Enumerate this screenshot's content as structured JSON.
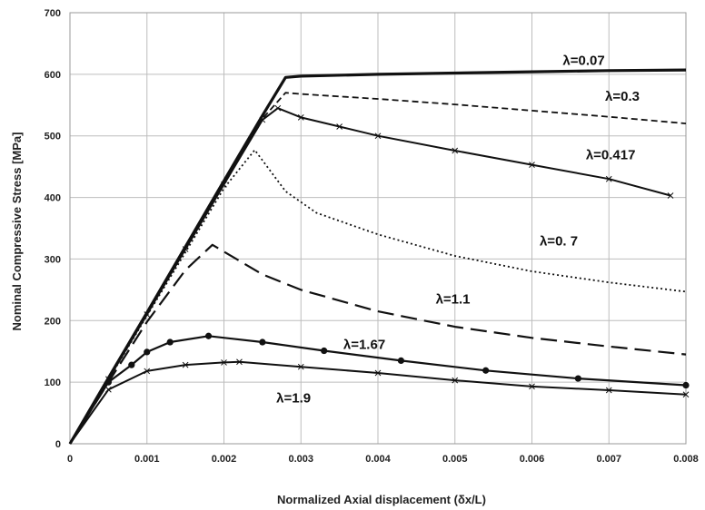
{
  "chart_data": {
    "type": "line",
    "xlabel": "Normalized Axial displacement (δx/L)",
    "ylabel": "Nominal Compressive Stress [MPa]",
    "xlim": [
      0,
      0.008
    ],
    "ylim": [
      0,
      700
    ],
    "x_ticks": [
      "0",
      "0.001",
      "0.002",
      "0.003",
      "0.004",
      "0.005",
      "0.006",
      "0.007",
      "0.008"
    ],
    "y_ticks": [
      "0",
      "100",
      "200",
      "300",
      "400",
      "500",
      "600",
      "700"
    ],
    "grid": true,
    "series": [
      {
        "name": "λ=0.07",
        "style": "solid-thick",
        "x": [
          0,
          0.0005,
          0.001,
          0.0015,
          0.002,
          0.0025,
          0.0028,
          0.003,
          0.004,
          0.005,
          0.006,
          0.007,
          0.008
        ],
        "y": [
          0,
          107,
          213,
          320,
          427,
          533,
          595,
          597,
          600,
          602,
          604,
          606,
          607
        ]
      },
      {
        "name": "λ=0.3",
        "style": "dashed",
        "x": [
          0,
          0.0005,
          0.001,
          0.0015,
          0.002,
          0.0025,
          0.0028,
          0.003,
          0.004,
          0.005,
          0.006,
          0.007,
          0.008
        ],
        "y": [
          0,
          106,
          211,
          317,
          422,
          528,
          570,
          568,
          560,
          551,
          541,
          531,
          520
        ]
      },
      {
        "name": "λ=0.417",
        "style": "solid-crosses",
        "x": [
          0,
          0.0005,
          0.001,
          0.0015,
          0.002,
          0.0025,
          0.0027,
          0.003,
          0.0035,
          0.004,
          0.005,
          0.006,
          0.007,
          0.0078
        ],
        "y": [
          0,
          105,
          210,
          316,
          421,
          526,
          545,
          530,
          515,
          500,
          476,
          453,
          430,
          403
        ]
      },
      {
        "name": "λ=0. 7",
        "style": "dotted",
        "x": [
          0,
          0.0005,
          0.001,
          0.0015,
          0.002,
          0.0024,
          0.0028,
          0.0032,
          0.004,
          0.005,
          0.006,
          0.007,
          0.008
        ],
        "y": [
          0,
          104,
          208,
          311,
          415,
          477,
          410,
          375,
          340,
          305,
          280,
          262,
          247
        ]
      },
      {
        "name": "λ=1.1",
        "style": "long-dash",
        "x": [
          0,
          0.0005,
          0.001,
          0.0015,
          0.00185,
          0.0025,
          0.003,
          0.004,
          0.005,
          0.006,
          0.007,
          0.008
        ],
        "y": [
          0,
          100,
          198,
          282,
          323,
          275,
          250,
          215,
          190,
          172,
          158,
          145
        ]
      },
      {
        "name": "λ=1.67",
        "style": "solid-dots",
        "x": [
          0,
          0.0005,
          0.0008,
          0.001,
          0.0013,
          0.0018,
          0.0025,
          0.0033,
          0.0043,
          0.0054,
          0.0066,
          0.008
        ],
        "y": [
          0,
          100,
          128,
          149,
          165,
          175,
          165,
          151,
          135,
          119,
          106,
          95
        ]
      },
      {
        "name": "λ=1.9",
        "style": "solid-crosses",
        "x": [
          0,
          0.0005,
          0.001,
          0.0015,
          0.002,
          0.0022,
          0.003,
          0.004,
          0.005,
          0.006,
          0.007,
          0.008
        ],
        "y": [
          0,
          88,
          118,
          128,
          132,
          133,
          125,
          115,
          103,
          93,
          87,
          80
        ]
      }
    ]
  }
}
